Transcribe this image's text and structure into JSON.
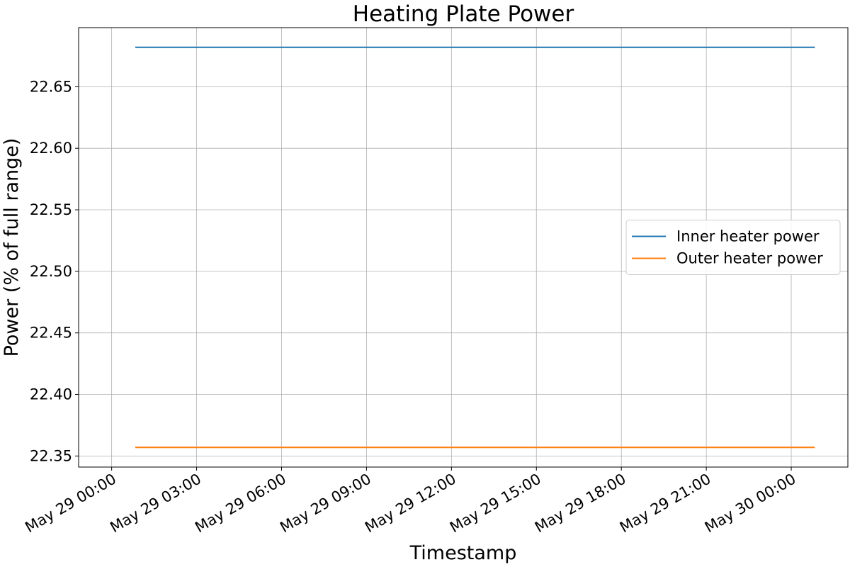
{
  "chart_data": {
    "type": "line",
    "title": "Heating Plate Power",
    "xlabel": "Timestamp",
    "ylabel": "Power (% of full range)",
    "x_ticks": [
      "May 29 00:00",
      "May 29 03:00",
      "May 29 06:00",
      "May 29 09:00",
      "May 29 12:00",
      "May 29 15:00",
      "May 29 18:00",
      "May 29 21:00",
      "May 30 00:00"
    ],
    "x_range": [
      "2024-05-28T22:50",
      "2024-05-30T02:00"
    ],
    "y_ticks": [
      "22.35",
      "22.40",
      "22.45",
      "22.50",
      "22.55",
      "22.60",
      "22.65"
    ],
    "ylim": [
      22.341,
      22.698
    ],
    "grid": true,
    "legend_position": "center-right",
    "series": [
      {
        "name": "Inner heater power",
        "color": "#1f77b4",
        "x": [
          "2024-05-29T00:50",
          "2024-05-30T00:50"
        ],
        "y": [
          22.682,
          22.682
        ]
      },
      {
        "name": "Outer heater power",
        "color": "#ff7f0e",
        "x": [
          "2024-05-29T00:50",
          "2024-05-30T00:50"
        ],
        "y": [
          22.357,
          22.357
        ]
      }
    ]
  }
}
